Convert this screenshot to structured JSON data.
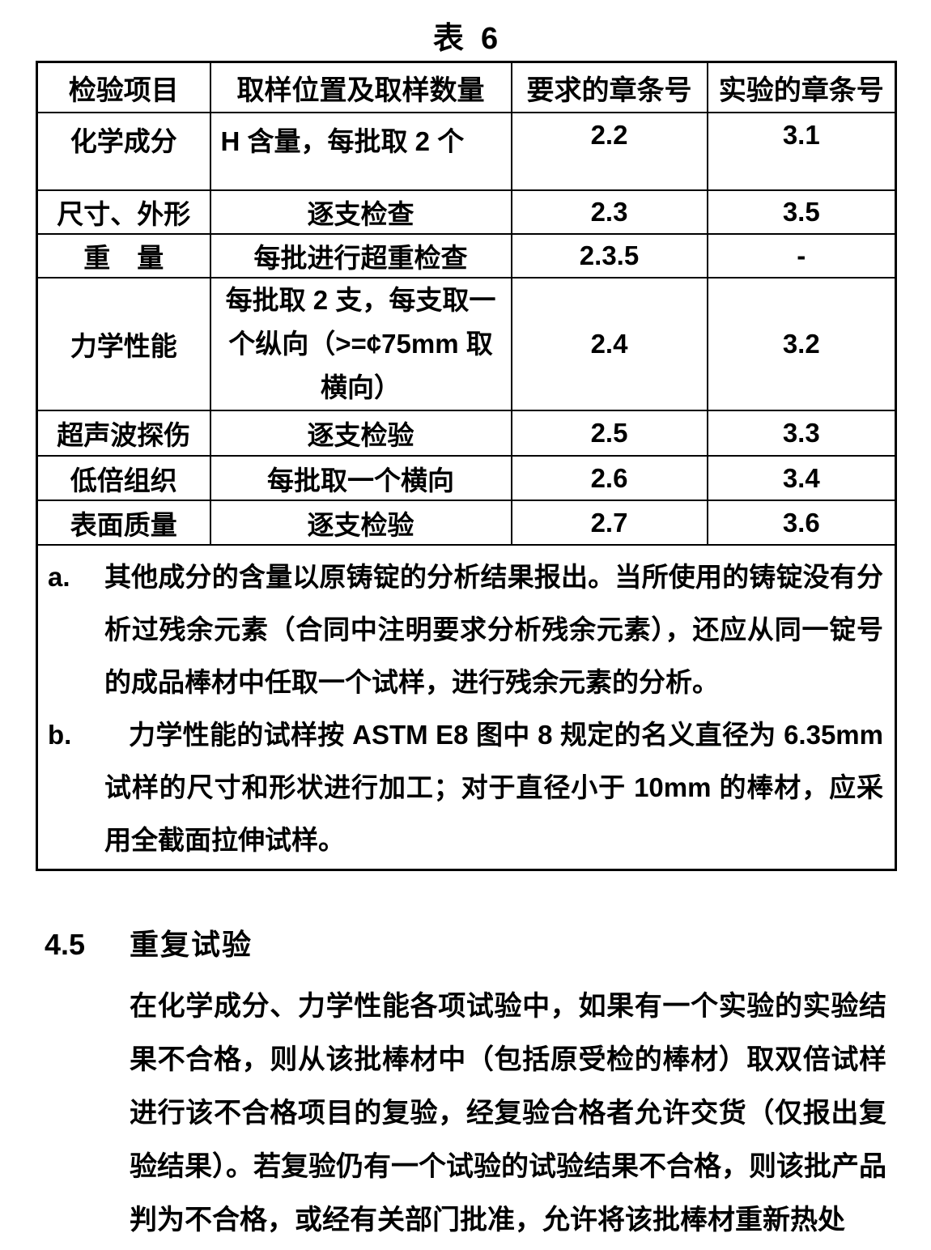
{
  "page": {
    "title": "表  6"
  },
  "table": {
    "headers": [
      "检验项目",
      "取样位置及取样数量",
      "要求的章条号",
      "实验的章条号"
    ],
    "rows": [
      {
        "item": "化学成分",
        "sampling": "H 含量，每批取 2 个",
        "req_clause": "2.2",
        "test_clause": "3.1"
      },
      {
        "item": "尺寸、外形",
        "sampling": "逐支检查",
        "req_clause": "2.3",
        "test_clause": "3.5"
      },
      {
        "item": "重　量",
        "sampling": "每批进行超重检查",
        "req_clause": "2.3.5",
        "test_clause": "-"
      },
      {
        "item": "力学性能",
        "sampling": "每批取 2 支，每支取一个纵向（>=¢75mm 取横向）",
        "req_clause": "2.4",
        "test_clause": "3.2"
      },
      {
        "item": "超声波探伤",
        "sampling": "逐支检验",
        "req_clause": "2.5",
        "test_clause": "3.3"
      },
      {
        "item": "低倍组织",
        "sampling": "每批取一个横向",
        "req_clause": "2.6",
        "test_clause": "3.4"
      },
      {
        "item": "表面质量",
        "sampling": "逐支检验",
        "req_clause": "2.7",
        "test_clause": "3.6"
      }
    ],
    "footnotes": [
      {
        "label": "a.",
        "text": "其他成分的含量以原铸锭的分析结果报出。当所使用的铸锭没有分析过残余元素（合同中注明要求分析残余元素），还应从同一锭号的成品棒材中任取一个试样，进行残余元素的分析。"
      },
      {
        "label": "b.",
        "text": "力学性能的试样按 ASTM E8 图中 8 规定的名义直径为 6.35mm 试样的尺寸和形状进行加工；对于直径小于 10mm 的棒材，应采用全截面拉伸试样。"
      }
    ]
  },
  "section": {
    "number": "4.5",
    "heading": "重复试验",
    "body": "在化学成分、力学性能各项试验中，如果有一个实验的实验结果不合格，则从该批棒材中（包括原受检的棒材）取双倍试样进行该不合格项目的复验，经复验合格者允许交货（仅报出复验结果）。若复验仍有一个试验的试验结果不合格，则该批产品判为不合格，或经有关部门批准，允许将该批棒材重新热处"
  }
}
